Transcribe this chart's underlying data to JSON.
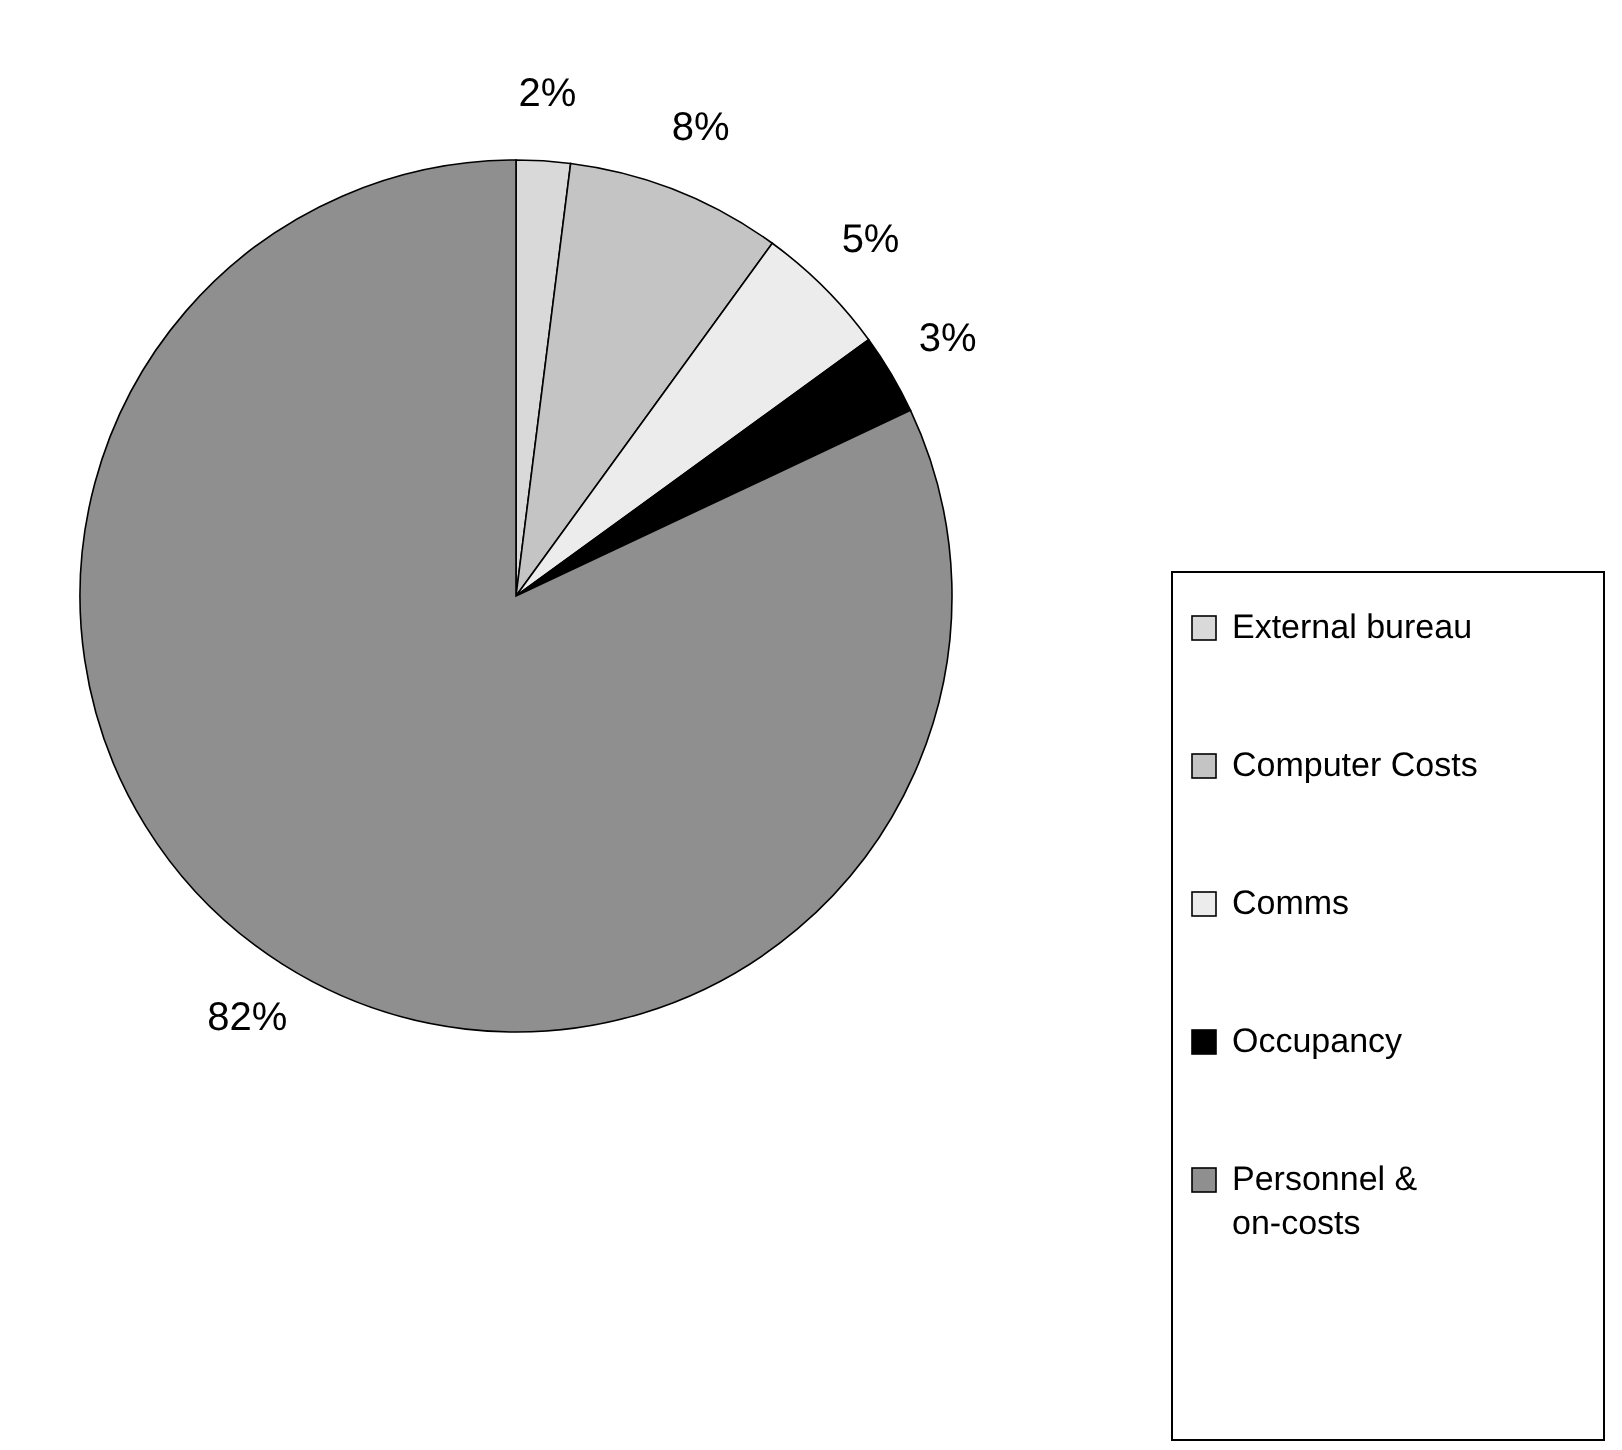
{
  "chart_data": {
    "type": "pie",
    "categories": [
      "External bureau",
      "Computer Costs",
      "Comms",
      "Occupancy",
      "Personnel & on-costs"
    ],
    "values": [
      2,
      8,
      5,
      3,
      82
    ],
    "colors": [
      "#d9d9d9",
      "#c4c4c4",
      "#ececec",
      "#000000",
      "#8f8f8f"
    ],
    "value_labels": [
      "2%",
      "8%",
      "5%",
      "3%",
      "82%"
    ],
    "legend": "right"
  }
}
